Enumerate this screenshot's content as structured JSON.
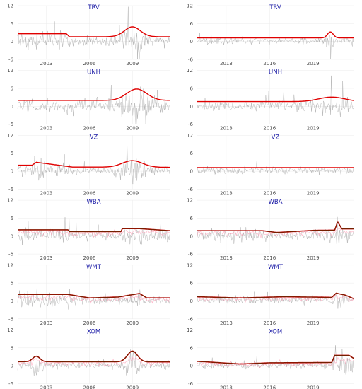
{
  "chart_data": [
    {
      "type": "line",
      "title": "TRV",
      "xticks": [
        "2003",
        "2006",
        "2009"
      ],
      "yticks": [
        -6,
        0,
        6,
        12
      ],
      "ylim": [
        -6,
        12
      ],
      "xrange": [
        2001,
        2011.6
      ],
      "baseline_segments": [
        [
          2001,
          2.6
        ],
        [
          2004.4,
          2.6
        ],
        [
          2004.6,
          1.6
        ],
        [
          2011.6,
          1.6
        ]
      ],
      "bumps": [
        [
          2009,
          3.3,
          0.55
        ]
      ],
      "pink_series": false,
      "colors": {
        "line": "#e00000",
        "noise": "#9e9e9e"
      }
    },
    {
      "type": "line",
      "title": "TRV",
      "xticks": [
        "2013",
        "2016",
        "2019"
      ],
      "yticks": [
        -6,
        0,
        6,
        12
      ],
      "ylim": [
        -6,
        12
      ],
      "xrange": [
        2011,
        2021.8
      ],
      "baseline_segments": [
        [
          2011,
          1.2
        ],
        [
          2021.8,
          1.2
        ]
      ],
      "bumps": [
        [
          2020.2,
          2.0,
          0.2
        ]
      ],
      "pink_series": false,
      "colors": {
        "line": "#e00000",
        "noise": "#9e9e9e"
      }
    },
    {
      "type": "line",
      "title": "UNH",
      "xticks": [
        "2003",
        "2006",
        "2009"
      ],
      "yticks": [
        -6,
        0,
        6,
        12
      ],
      "ylim": [
        -6,
        12
      ],
      "xrange": [
        2001,
        2011.6
      ],
      "baseline_segments": [
        [
          2001,
          2.0
        ],
        [
          2011.6,
          2.0
        ]
      ],
      "bumps": [
        [
          2009.3,
          3.8,
          0.7
        ]
      ],
      "pink_series": false,
      "colors": {
        "line": "#e00000",
        "noise": "#9e9e9e"
      }
    },
    {
      "type": "line",
      "title": "UNH",
      "xticks": [
        "2013",
        "2016",
        "2019"
      ],
      "yticks": [
        -6,
        0,
        6,
        12
      ],
      "ylim": [
        -6,
        12
      ],
      "xrange": [
        2011,
        2021.8
      ],
      "baseline_segments": [
        [
          2011,
          1.6
        ],
        [
          2021.8,
          1.6
        ]
      ],
      "bumps": [
        [
          2020.3,
          1.5,
          0.9
        ]
      ],
      "pink_series": false,
      "colors": {
        "line": "#e00000",
        "noise": "#9e9e9e"
      }
    },
    {
      "type": "line",
      "title": "VZ",
      "xticks": [
        "2003",
        "2006",
        "2009"
      ],
      "yticks": [
        -6,
        0,
        6,
        12
      ],
      "ylim": [
        -6,
        12
      ],
      "xrange": [
        2001,
        2011.6
      ],
      "baseline_segments": [
        [
          2001,
          2.0
        ],
        [
          2002,
          2.0
        ],
        [
          2002.3,
          3.0
        ],
        [
          2004.8,
          1.4
        ],
        [
          2011.6,
          1.3
        ]
      ],
      "bumps": [
        [
          2009,
          2.2,
          0.7
        ]
      ],
      "pink_series": false,
      "colors": {
        "line": "#e00000",
        "noise": "#9e9e9e"
      }
    },
    {
      "type": "line",
      "title": "VZ",
      "xticks": [
        "2013",
        "2016",
        "2019"
      ],
      "yticks": [
        -6,
        0,
        6,
        12
      ],
      "ylim": [
        -6,
        12
      ],
      "xrange": [
        2011,
        2021.8
      ],
      "baseline_segments": [
        [
          2011,
          1.2
        ],
        [
          2021.8,
          1.2
        ]
      ],
      "bumps": [],
      "pink_series": false,
      "colors": {
        "line": "#e00000",
        "noise": "#9e9e9e"
      }
    },
    {
      "type": "line",
      "title": "WBA",
      "xticks": [
        "2003",
        "2006",
        "2009"
      ],
      "yticks": [
        -6,
        0,
        6,
        12
      ],
      "ylim": [
        -6,
        12
      ],
      "xrange": [
        2001,
        2011.6
      ],
      "baseline_segments": [
        [
          2001,
          2.1
        ],
        [
          2004.5,
          2.1
        ],
        [
          2004.6,
          1.5
        ],
        [
          2008.2,
          1.5
        ],
        [
          2008.3,
          2.5
        ],
        [
          2009.5,
          2.5
        ],
        [
          2011.6,
          1.8
        ]
      ],
      "bumps": [],
      "pink_series": true,
      "colors": {
        "line": "#c40000",
        "dark": "#5a2a00",
        "noise": "#9e9e9e",
        "pink": "#ff9fb8"
      }
    },
    {
      "type": "line",
      "title": "WBA",
      "xticks": [
        "2013",
        "2016",
        "2019"
      ],
      "yticks": [
        -6,
        0,
        6,
        12
      ],
      "ylim": [
        -6,
        12
      ],
      "xrange": [
        2011,
        2021.8
      ],
      "baseline_segments": [
        [
          2011,
          1.8
        ],
        [
          2015.5,
          1.8
        ],
        [
          2016.5,
          1.2
        ],
        [
          2019,
          1.9
        ],
        [
          2020.5,
          2.0
        ],
        [
          2020.7,
          4.8
        ],
        [
          2021,
          2.4
        ],
        [
          2021.8,
          2.4
        ]
      ],
      "bumps": [],
      "pink_series": true,
      "colors": {
        "line": "#c40000",
        "dark": "#5a2a00",
        "noise": "#9e9e9e",
        "pink": "#ff9fb8"
      }
    },
    {
      "type": "line",
      "title": "WMT",
      "xticks": [
        "2003",
        "2006",
        "2009"
      ],
      "yticks": [
        -6,
        0,
        6,
        12
      ],
      "ylim": [
        -6,
        12
      ],
      "xrange": [
        2001,
        2011.6
      ],
      "baseline_segments": [
        [
          2001,
          2.2
        ],
        [
          2004.5,
          2.2
        ],
        [
          2006,
          1.0
        ],
        [
          2008,
          1.3
        ],
        [
          2009.5,
          2.5
        ],
        [
          2010,
          1.0
        ],
        [
          2011.6,
          1.0
        ]
      ],
      "bumps": [],
      "pink_series": true,
      "colors": {
        "line": "#c40000",
        "dark": "#5a2a00",
        "noise": "#9e9e9e",
        "pink": "#ff9fb8"
      }
    },
    {
      "type": "line",
      "title": "WMT",
      "xticks": [
        "2013",
        "2016",
        "2019"
      ],
      "yticks": [
        -6,
        0,
        6,
        12
      ],
      "ylim": [
        -6,
        12
      ],
      "xrange": [
        2011,
        2021.8
      ],
      "baseline_segments": [
        [
          2011,
          1.4
        ],
        [
          2014,
          1.0
        ],
        [
          2017,
          1.4
        ],
        [
          2020.3,
          1.2
        ],
        [
          2020.6,
          2.6
        ],
        [
          2021.2,
          2.0
        ],
        [
          2021.8,
          0.8
        ]
      ],
      "bumps": [],
      "pink_series": true,
      "colors": {
        "line": "#c40000",
        "dark": "#5a2a00",
        "noise": "#9e9e9e",
        "pink": "#ff9fb8"
      }
    },
    {
      "type": "line",
      "title": "XOM",
      "xticks": [
        "2003",
        "2006",
        "2009"
      ],
      "yticks": [
        -6,
        0,
        6,
        12
      ],
      "ylim": [
        -6,
        12
      ],
      "xrange": [
        2001,
        2011.6
      ],
      "baseline_segments": [
        [
          2001,
          1.4
        ],
        [
          2011.6,
          1.3
        ]
      ],
      "bumps": [
        [
          2002.3,
          1.8,
          0.25
        ],
        [
          2009,
          3.6,
          0.35
        ]
      ],
      "pink_series": true,
      "colors": {
        "line": "#c40000",
        "dark": "#5a2a00",
        "noise": "#9e9e9e",
        "pink": "#ff9fb8"
      }
    },
    {
      "type": "line",
      "title": "XOM",
      "xticks": [
        "2013",
        "2016",
        "2019"
      ],
      "yticks": [
        -6,
        0,
        6,
        12
      ],
      "ylim": [
        -6,
        12
      ],
      "xrange": [
        2011,
        2021.8
      ],
      "baseline_segments": [
        [
          2011,
          1.5
        ],
        [
          2014,
          0.6
        ],
        [
          2016,
          1.0
        ],
        [
          2020.3,
          1.1
        ],
        [
          2020.5,
          3.5
        ],
        [
          2021.5,
          3.5
        ],
        [
          2021.8,
          2.5
        ]
      ],
      "bumps": [],
      "pink_series": true,
      "colors": {
        "line": "#c40000",
        "dark": "#5a2a00",
        "noise": "#9e9e9e",
        "pink": "#ff9fb8"
      }
    }
  ],
  "colors": {
    "title": "#1a1aa6",
    "grid": "#ebebeb",
    "tick": "#4d4d4d"
  }
}
